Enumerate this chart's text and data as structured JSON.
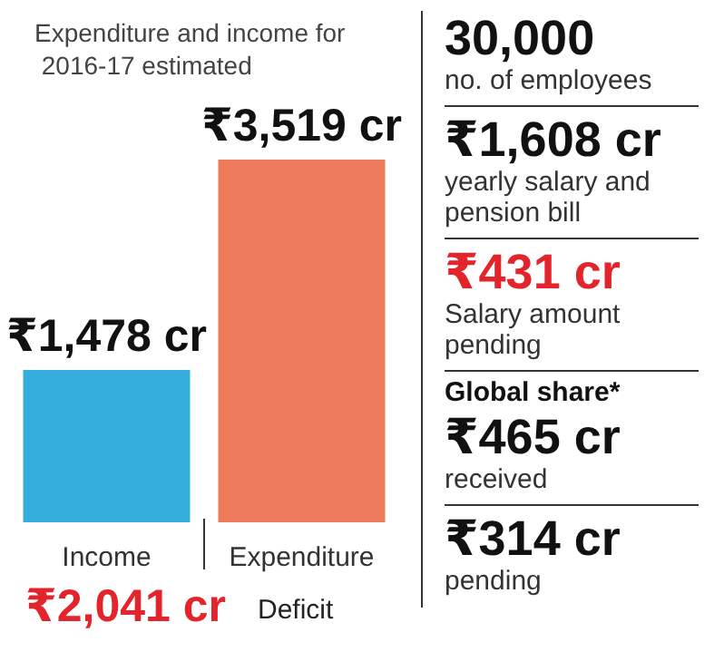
{
  "chart_data": [
    {
      "type": "bar",
      "title": "Expenditure and income for 2016-17 estimated",
      "categories": [
        "Income",
        "Expenditure"
      ],
      "values": [
        1478,
        3519
      ],
      "colors": [
        "#35aede",
        "#ee7b5c"
      ],
      "value_labels": [
        "₹1,478 cr",
        "₹3,519 cr"
      ],
      "annotations": [
        "₹2,041 cr",
        "Deficit"
      ]
    },
    {
      "type": "other",
      "annotations": [
        "30,000",
        "no. of employees",
        "₹1,608 cr",
        "yearly salary and pension bill",
        "₹431 cr",
        "Salary amount pending",
        "Global share*",
        "₹465 cr",
        "received",
        "₹314 cr",
        "pending"
      ]
    }
  ]
}
